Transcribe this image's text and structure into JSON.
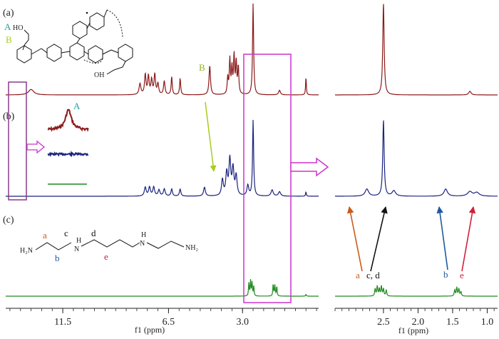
{
  "chart_data": {
    "type": "line",
    "description": "Stacked 1H NMR spectra (a, b, c) with expanded region on the right",
    "panels": [
      {
        "id": "a",
        "label": "(a)",
        "color": "#8b1a1a"
      },
      {
        "id": "b",
        "label": "(b)",
        "color": "#1a237e"
      },
      {
        "id": "c",
        "label": "(c)",
        "color": "#1f8a1f"
      }
    ],
    "main_axis": {
      "xlabel": "f1 (ppm)",
      "xlim": [
        14.2,
        -0.6
      ],
      "ticks": [
        {
          "v": 11.5,
          "label": "11.5"
        },
        {
          "v": 6.5,
          "label": "6.5"
        },
        {
          "v": 3.0,
          "label": "3.0"
        }
      ]
    },
    "zoom_axis": {
      "xlabel": "f1 (ppm)",
      "xlim": [
        3.2,
        0.85
      ],
      "ticks": [
        {
          "v": 2.5,
          "label": "2.5"
        },
        {
          "v": 2.0,
          "label": "2.0"
        },
        {
          "v": 1.5,
          "label": "1.5"
        },
        {
          "v": 1.0,
          "label": "1.0"
        }
      ]
    },
    "peaks_main": {
      "a": [
        {
          "ppm": 13.0,
          "h": 0.06,
          "w": 0.15
        },
        {
          "ppm": 7.85,
          "h": 0.12,
          "w": 0.05
        },
        {
          "ppm": 7.6,
          "h": 0.22,
          "w": 0.04
        },
        {
          "ppm": 7.45,
          "h": 0.2,
          "w": 0.04
        },
        {
          "ppm": 7.3,
          "h": 0.16,
          "w": 0.04
        },
        {
          "ppm": 7.15,
          "h": 0.22,
          "w": 0.04
        },
        {
          "ppm": 7.0,
          "h": 0.12,
          "w": 0.04
        },
        {
          "ppm": 6.7,
          "h": 0.15,
          "w": 0.04
        },
        {
          "ppm": 6.35,
          "h": 0.2,
          "w": 0.03
        },
        {
          "ppm": 5.95,
          "h": 0.18,
          "w": 0.03
        },
        {
          "ppm": 4.55,
          "h": 0.32,
          "w": 0.04
        },
        {
          "ppm": 3.7,
          "h": 0.18,
          "w": 0.03
        },
        {
          "ppm": 3.6,
          "h": 0.38,
          "w": 0.03
        },
        {
          "ppm": 3.5,
          "h": 0.28,
          "w": 0.03
        },
        {
          "ppm": 3.4,
          "h": 0.42,
          "w": 0.03
        },
        {
          "ppm": 3.3,
          "h": 0.35,
          "w": 0.03
        },
        {
          "ppm": 3.2,
          "h": 0.3,
          "w": 0.03
        },
        {
          "ppm": 2.5,
          "h": 1.0,
          "w": 0.03
        },
        {
          "ppm": 1.25,
          "h": 0.05,
          "w": 0.05
        },
        {
          "ppm": 0.0,
          "h": 0.2,
          "w": 0.02
        }
      ],
      "b": [
        {
          "ppm": 7.6,
          "h": 0.1,
          "w": 0.05
        },
        {
          "ppm": 7.4,
          "h": 0.1,
          "w": 0.05
        },
        {
          "ppm": 7.2,
          "h": 0.1,
          "w": 0.05
        },
        {
          "ppm": 6.95,
          "h": 0.07,
          "w": 0.05
        },
        {
          "ppm": 6.7,
          "h": 0.08,
          "w": 0.05
        },
        {
          "ppm": 6.35,
          "h": 0.08,
          "w": 0.04
        },
        {
          "ppm": 5.95,
          "h": 0.08,
          "w": 0.04
        },
        {
          "ppm": 4.8,
          "h": 0.1,
          "w": 0.05
        },
        {
          "ppm": 3.95,
          "h": 0.18,
          "w": 0.05
        },
        {
          "ppm": 3.75,
          "h": 0.25,
          "w": 0.05
        },
        {
          "ppm": 3.6,
          "h": 0.4,
          "w": 0.05
        },
        {
          "ppm": 3.45,
          "h": 0.3,
          "w": 0.05
        },
        {
          "ppm": 3.3,
          "h": 0.22,
          "w": 0.05
        },
        {
          "ppm": 2.75,
          "h": 0.12,
          "w": 0.05
        },
        {
          "ppm": 2.5,
          "h": 0.85,
          "w": 0.03
        },
        {
          "ppm": 1.6,
          "h": 0.07,
          "w": 0.06
        },
        {
          "ppm": 1.25,
          "h": 0.05,
          "w": 0.06
        },
        {
          "ppm": 0.0,
          "h": 0.05,
          "w": 0.02
        }
      ],
      "c": [
        {
          "ppm": 2.7,
          "h": 0.22,
          "w": 0.02
        },
        {
          "ppm": 2.62,
          "h": 0.25,
          "w": 0.02
        },
        {
          "ppm": 2.55,
          "h": 0.22,
          "w": 0.02
        },
        {
          "ppm": 2.47,
          "h": 0.16,
          "w": 0.02
        },
        {
          "ppm": 1.55,
          "h": 0.2,
          "w": 0.02
        },
        {
          "ppm": 1.47,
          "h": 0.18,
          "w": 0.02
        },
        {
          "ppm": 1.38,
          "h": 0.16,
          "w": 0.02
        },
        {
          "ppm": 0.0,
          "h": 0.03,
          "w": 0.02
        }
      ]
    },
    "peaks_zoom": {
      "a": [
        {
          "ppm": 2.5,
          "h": 1.0,
          "w": 0.012
        },
        {
          "ppm": 1.25,
          "h": 0.04,
          "w": 0.02
        }
      ],
      "b": [
        {
          "ppm": 2.74,
          "h": 0.08,
          "w": 0.03
        },
        {
          "ppm": 2.5,
          "h": 0.85,
          "w": 0.012
        },
        {
          "ppm": 2.35,
          "h": 0.06,
          "w": 0.03
        },
        {
          "ppm": 1.6,
          "h": 0.08,
          "w": 0.03
        },
        {
          "ppm": 1.25,
          "h": 0.05,
          "w": 0.04
        },
        {
          "ppm": 1.15,
          "h": 0.04,
          "w": 0.04
        }
      ],
      "c": [
        {
          "ppm": 2.62,
          "h": 0.12,
          "w": 0.008
        },
        {
          "ppm": 2.59,
          "h": 0.16,
          "w": 0.008
        },
        {
          "ppm": 2.56,
          "h": 0.12,
          "w": 0.008
        },
        {
          "ppm": 2.53,
          "h": 0.16,
          "w": 0.008
        },
        {
          "ppm": 2.5,
          "h": 0.12,
          "w": 0.008
        },
        {
          "ppm": 2.46,
          "h": 0.1,
          "w": 0.008
        },
        {
          "ppm": 1.47,
          "h": 0.1,
          "w": 0.008
        },
        {
          "ppm": 1.44,
          "h": 0.14,
          "w": 0.008
        },
        {
          "ppm": 1.41,
          "h": 0.12,
          "w": 0.008
        },
        {
          "ppm": 1.38,
          "h": 0.07,
          "w": 0.008
        }
      ]
    },
    "annotations": {
      "A_top": "A",
      "B_top": "B",
      "B_arrow": "B",
      "A_inset": "A",
      "mol_a": "a",
      "mol_b": "b",
      "mol_c": "c",
      "mol_d": "d",
      "mol_e": "e",
      "mol_hn1": "H",
      "mol_hn2": "H",
      "mol_h2n_left": "H₂N",
      "mol_nh2_right": "NH₂",
      "mol_n1": "N",
      "mol_n2": "N",
      "mol_ho_top": "HO",
      "mol_oh_bottom": "OH",
      "zoom_a": "a",
      "zoom_cd": "c, d",
      "zoom_b": "b",
      "zoom_e": "e"
    },
    "colors": {
      "a": "#8b1a1a",
      "b": "#1a237e",
      "c": "#1f8a1f",
      "box": "#cc33cc",
      "box_left": "#8b3a8b",
      "arrow_yellow": "#a6cc1f",
      "label_orange": "#c85a1a",
      "label_blue": "#1f5aa0",
      "label_red": "#d0203a",
      "label_teal": "#2aa0a0"
    }
  }
}
